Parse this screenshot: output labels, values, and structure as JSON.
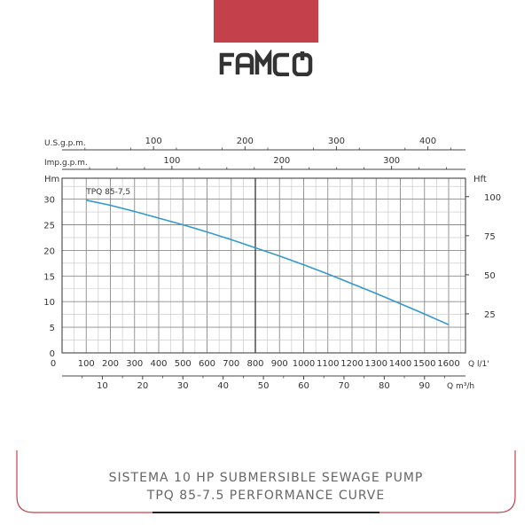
{
  "brand": {
    "logo_text": "FAMCO",
    "band_color": "#c4404a",
    "logo_color": "#333333"
  },
  "caption": {
    "line1": "SISTEMA 10 HP SUBMERSIBLE SEWAGE PUMP",
    "line2": "TPQ 85-7.5 PERFORMANCE CURVE"
  },
  "chart_data": {
    "type": "line",
    "title": "",
    "grid": true,
    "series": [
      {
        "name": "TPQ 85-7,5",
        "color": "#3399cc",
        "x_unit": "l/min",
        "x": [
          100,
          200,
          300,
          400,
          500,
          600,
          700,
          800,
          900,
          1000,
          1100,
          1200,
          1300,
          1400,
          1500,
          1600
        ],
        "y": [
          29.8,
          28.8,
          27.6,
          26.3,
          25.0,
          23.6,
          22.1,
          20.5,
          18.9,
          17.2,
          15.4,
          13.5,
          11.6,
          9.6,
          7.6,
          5.5
        ]
      }
    ],
    "axes": {
      "left": {
        "label": "Hm",
        "ticks": [
          0,
          5,
          10,
          15,
          20,
          25,
          30
        ],
        "range": [
          0,
          35
        ]
      },
      "right": {
        "label": "Hft",
        "ticks": [
          25,
          50,
          75,
          100
        ],
        "scale_per_m": 3.28
      },
      "bottom_lpm": {
        "label": "Q l/1'",
        "ticks": [
          0,
          100,
          200,
          300,
          400,
          500,
          600,
          700,
          800,
          900,
          1000,
          1100,
          1200,
          1300,
          1400,
          1500,
          1600
        ],
        "range": [
          0,
          1650
        ]
      },
      "bottom_m3h": {
        "label": "Q m³/h",
        "ticks": [
          10,
          20,
          30,
          40,
          50,
          60,
          70,
          80,
          90
        ],
        "lpm_per_unit": 16.667
      },
      "top_usgpm": {
        "label": "U.S.g.p.m.",
        "ticks": [
          100,
          200,
          300,
          400
        ],
        "lpm_per_unit": 3.785
      },
      "top_impgpm": {
        "label": "Imp.g.p.m.",
        "ticks": [
          100,
          200,
          300
        ],
        "lpm_per_unit": 4.546
      }
    }
  }
}
